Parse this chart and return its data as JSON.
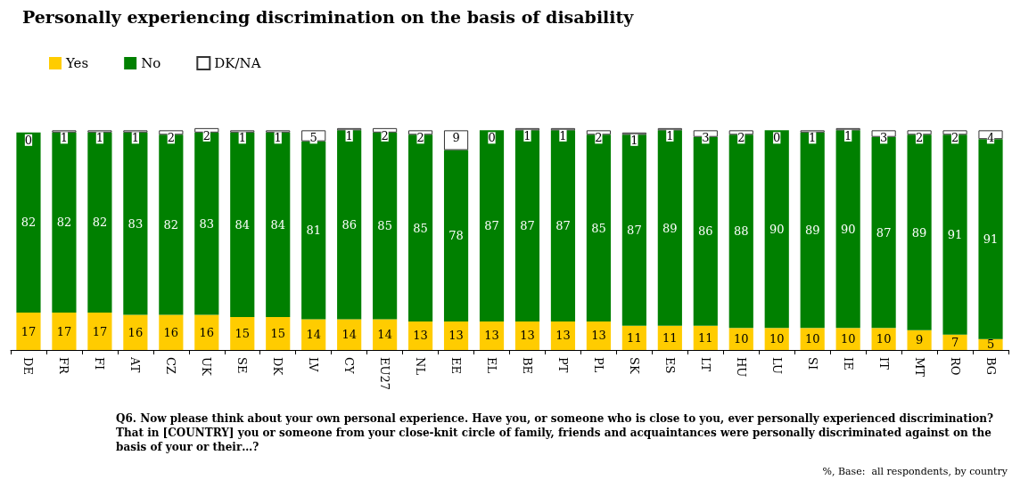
{
  "chart_data": {
    "type": "bar",
    "title": "Personally experiencing discrimination on the basis of disability",
    "stacked": true,
    "data_labels": true,
    "legend": "top left",
    "categories": [
      "DE",
      "FR",
      "FI",
      "AT",
      "CZ",
      "UK",
      "SE",
      "DK",
      "LV",
      "CY",
      "EU27",
      "NL",
      "EE",
      "EL",
      "BE",
      "PT",
      "PL",
      "SK",
      "ES",
      "LT",
      "HU",
      "LU",
      "SI",
      "IE",
      "IT",
      "MT",
      "RO",
      "BG"
    ],
    "series": [
      {
        "name": "Yes",
        "color": "#ffcc00",
        "values": [
          17,
          17,
          17,
          16,
          16,
          16,
          15,
          15,
          14,
          14,
          14,
          13,
          13,
          13,
          13,
          13,
          13,
          11,
          11,
          11,
          10,
          10,
          10,
          10,
          10,
          9,
          7,
          5
        ]
      },
      {
        "name": "No",
        "color": "#008000",
        "values": [
          82,
          82,
          82,
          83,
          82,
          83,
          84,
          84,
          81,
          86,
          85,
          85,
          78,
          87,
          87,
          87,
          85,
          87,
          89,
          86,
          88,
          90,
          89,
          90,
          87,
          89,
          91,
          91
        ]
      },
      {
        "name": "DK/NA",
        "color": "#ffffff",
        "values": [
          0,
          1,
          1,
          1,
          2,
          2,
          1,
          1,
          5,
          1,
          2,
          2,
          9,
          0,
          1,
          1,
          2,
          1,
          1,
          3,
          2,
          0,
          1,
          1,
          3,
          2,
          2,
          4
        ]
      }
    ],
    "annotations": [
      "Q6. Now please think about your own personal experience. Have you, or someone who is close to you, ever personally experienced discrimination? That in [COUNTRY] you or someone from your close-knit circle of family, friends and acquaintances were personally discriminated against on the basis of your or their…?",
      "%, Base:  all respondents, by country"
    ]
  }
}
